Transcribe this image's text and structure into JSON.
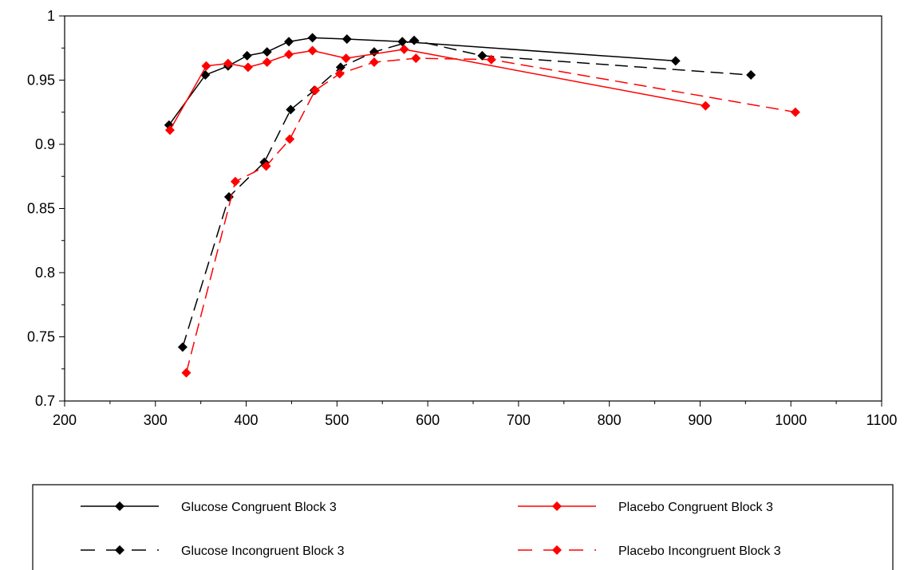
{
  "chart_data": {
    "type": "line",
    "title": "",
    "xlabel": "",
    "ylabel": "",
    "xlim": [
      200,
      1100
    ],
    "ylim": [
      0.7,
      1
    ],
    "x_ticks": [
      200,
      300,
      400,
      500,
      600,
      700,
      800,
      900,
      1000,
      1100
    ],
    "y_ticks": [
      0.7,
      0.75,
      0.8,
      0.85,
      0.9,
      0.95,
      1
    ],
    "y_tick_labels": [
      "0.7",
      "0.75",
      "0.8",
      "0.85",
      "0.9",
      "0.95",
      "1"
    ],
    "grid": false,
    "legend_position": "bottom",
    "series": [
      {
        "name": "Glucose Congruent Block 3",
        "color": "#000000",
        "line_style": "solid",
        "marker": "diamond",
        "points": [
          [
            315,
            0.915
          ],
          [
            355,
            0.954
          ],
          [
            380,
            0.961
          ],
          [
            401,
            0.969
          ],
          [
            423,
            0.972
          ],
          [
            447,
            0.98
          ],
          [
            473,
            0.983
          ],
          [
            511,
            0.982
          ],
          [
            572,
            0.98
          ],
          [
            873,
            0.965
          ]
        ]
      },
      {
        "name": "Glucose Incongruent Block 3",
        "color": "#000000",
        "line_style": "dashed",
        "marker": "diamond",
        "points": [
          [
            330,
            0.742
          ],
          [
            381,
            0.859
          ],
          [
            420,
            0.886
          ],
          [
            449,
            0.927
          ],
          [
            475,
            0.942
          ],
          [
            504,
            0.96
          ],
          [
            541,
            0.972
          ],
          [
            585,
            0.981
          ],
          [
            660,
            0.969
          ],
          [
            956,
            0.954
          ]
        ]
      },
      {
        "name": "Placebo Congruent Block 3",
        "color": "#ff0000",
        "line_style": "solid",
        "marker": "diamond",
        "points": [
          [
            316,
            0.911
          ],
          [
            356,
            0.961
          ],
          [
            380,
            0.963
          ],
          [
            402,
            0.96
          ],
          [
            423,
            0.964
          ],
          [
            447,
            0.97
          ],
          [
            473,
            0.973
          ],
          [
            510,
            0.967
          ],
          [
            574,
            0.974
          ],
          [
            906,
            0.93
          ]
        ]
      },
      {
        "name": "Placebo Incongruent Block 3",
        "color": "#ff0000",
        "line_style": "dashed",
        "marker": "diamond",
        "points": [
          [
            334,
            0.722
          ],
          [
            388,
            0.871
          ],
          [
            422,
            0.883
          ],
          [
            448,
            0.904
          ],
          [
            476,
            0.942
          ],
          [
            503,
            0.955
          ],
          [
            541,
            0.964
          ],
          [
            587,
            0.967
          ],
          [
            670,
            0.966
          ],
          [
            1005,
            0.925
          ]
        ]
      }
    ]
  }
}
